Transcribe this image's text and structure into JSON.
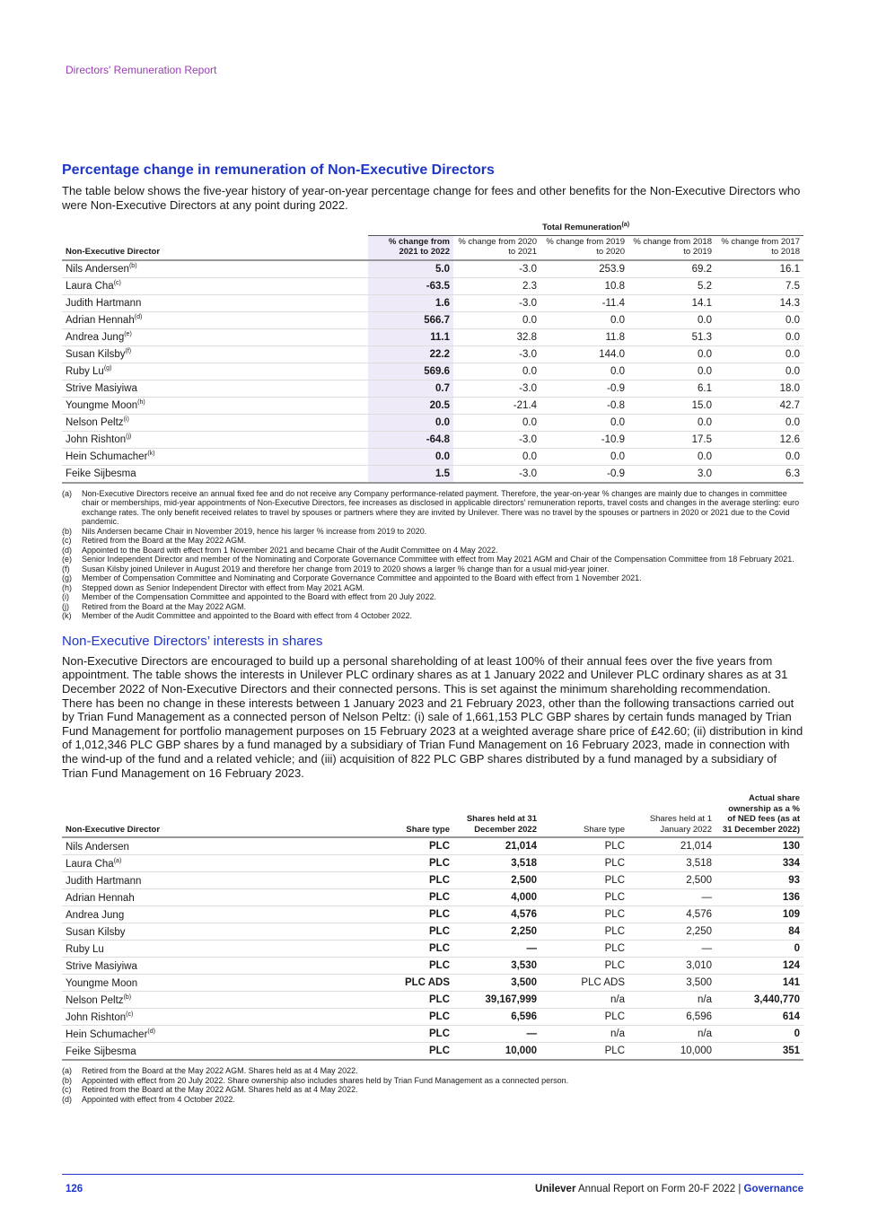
{
  "header": {
    "section": "Directors' Remuneration Report"
  },
  "section1": {
    "title": "Percentage change in remuneration of Non-Executive Directors",
    "intro": "The table below shows the five-year history of year-on-year percentage change for fees and other benefits for the Non-Executive Directors who were Non-Executive Directors at any point during 2022.",
    "group_header": "Total Remuneration",
    "group_note": "(a)",
    "columns": [
      "Non-Executive Director",
      "% change from 2021 to 2022",
      "% change from 2020 to 2021",
      "% change from 2019 to 2020",
      "% change from 2018 to 2019",
      "% change from 2017 to 2018"
    ],
    "rows": [
      {
        "name": "Nils Andersen",
        "note": "(b)",
        "v": [
          "5.0",
          "-3.0",
          "253.9",
          "69.2",
          "16.1"
        ]
      },
      {
        "name": "Laura Cha",
        "note": "(c)",
        "v": [
          "-63.5",
          "2.3",
          "10.8",
          "5.2",
          "7.5"
        ]
      },
      {
        "name": "Judith Hartmann",
        "note": "",
        "v": [
          "1.6",
          "-3.0",
          "-11.4",
          "14.1",
          "14.3"
        ]
      },
      {
        "name": "Adrian Hennah",
        "note": "(d)",
        "v": [
          "566.7",
          "0.0",
          "0.0",
          "0.0",
          "0.0"
        ]
      },
      {
        "name": "Andrea Jung",
        "note": "(e)",
        "v": [
          "11.1",
          "32.8",
          "11.8",
          "51.3",
          "0.0"
        ]
      },
      {
        "name": "Susan Kilsby",
        "note": "(f)",
        "v": [
          "22.2",
          "-3.0",
          "144.0",
          "0.0",
          "0.0"
        ]
      },
      {
        "name": "Ruby Lu",
        "note": "(g)",
        "v": [
          "569.6",
          "0.0",
          "0.0",
          "0.0",
          "0.0"
        ]
      },
      {
        "name": "Strive Masiyiwa",
        "note": "",
        "v": [
          "0.7",
          "-3.0",
          "-0.9",
          "6.1",
          "18.0"
        ]
      },
      {
        "name": "Youngme Moon",
        "note": "(h)",
        "v": [
          "20.5",
          "-21.4",
          "-0.8",
          "15.0",
          "42.7"
        ]
      },
      {
        "name": "Nelson Peltz",
        "note": "(i)",
        "v": [
          "0.0",
          "0.0",
          "0.0",
          "0.0",
          "0.0"
        ]
      },
      {
        "name": "John Rishton",
        "note": "(j)",
        "v": [
          "-64.8",
          "-3.0",
          "-10.9",
          "17.5",
          "12.6"
        ]
      },
      {
        "name": "Hein Schumacher",
        "note": "(k)",
        "v": [
          "0.0",
          "0.0",
          "0.0",
          "0.0",
          "0.0"
        ]
      },
      {
        "name": "Feike Sijbesma",
        "note": "",
        "v": [
          "1.5",
          "-3.0",
          "-0.9",
          "3.0",
          "6.3"
        ]
      }
    ],
    "notes": [
      {
        "k": "(a)",
        "t": "Non-Executive Directors receive an annual fixed fee and do not receive any Company performance-related payment. Therefore, the year-on-year % changes are mainly due to changes in committee chair or memberships, mid-year appointments of Non-Executive Directors, fee increases as disclosed in applicable directors' remuneration reports, travel costs and changes in the average sterling: euro exchange rates. The only benefit received relates to travel by spouses or partners where they are invited by Unilever. There was no travel by the spouses or partners in 2020 or 2021 due to the Covid pandemic."
      },
      {
        "k": "(b)",
        "t": "Nils Andersen became Chair in November 2019, hence his larger % increase from 2019 to 2020."
      },
      {
        "k": "(c)",
        "t": "Retired from the Board at the May 2022 AGM."
      },
      {
        "k": "(d)",
        "t": "Appointed to the Board with effect from 1 November 2021 and became Chair of the Audit Committee on 4 May 2022."
      },
      {
        "k": "(e)",
        "t": "Senior Independent Director and member of the Nominating and Corporate Governance Committee with effect from May 2021 AGM and Chair of the Compensation Committee from 18 February 2021."
      },
      {
        "k": "(f)",
        "t": "Susan Kilsby joined Unilever in August 2019 and therefore her change from 2019 to 2020 shows a larger % change than for a usual mid-year joiner."
      },
      {
        "k": "(g)",
        "t": "Member of Compensation Committee and Nominating and Corporate Governance Committee and appointed to the Board with effect from 1 November 2021."
      },
      {
        "k": "(h)",
        "t": "Stepped down as Senior Independent Director with effect from May 2021 AGM."
      },
      {
        "k": "(i)",
        "t": "Member of the Compensation Committee and appointed to the Board with effect from 20 July 2022."
      },
      {
        "k": "(j)",
        "t": "Retired from the Board at the May 2022 AGM."
      },
      {
        "k": "(k)",
        "t": "Member of the Audit Committee and appointed to the Board with effect from 4 October 2022."
      }
    ]
  },
  "section2": {
    "title": "Non-Executive Directors’ interests in shares",
    "intro": "Non-Executive Directors are encouraged to build up a personal shareholding of at least 100% of their annual fees over the five years from appointment. The table shows the interests in Unilever PLC ordinary shares as at 1 January 2022 and Unilever PLC ordinary shares as at 31 December 2022 of Non-Executive Directors and their connected persons. This is set against the minimum shareholding recommendation. There has been no change in these interests between 1 January 2023 and 21 February 2023, other than the following transactions carried out by Trian Fund Management as a connected person of Nelson Peltz: (i) sale of 1,661,153 PLC GBP shares by certain funds managed by Trian Fund Management for portfolio management purposes on 15 February 2023 at a weighted average share price of £42.60; (ii) distribution in kind of 1,012,346 PLC GBP shares by a fund managed by a subsidiary of Trian Fund Management on 16 February 2023, made in connection with the wind-up of the fund and a related vehicle; and (iii) acquisition of 822 PLC GBP shares distributed by a fund managed by a subsidiary of Trian Fund Management on 16 February 2023.",
    "columns": [
      "Non-Executive Director",
      "Share type",
      "Shares held at 31 December 2022",
      "Share type",
      "Shares held at 1 January 2022",
      "Actual share ownership as a % of NED fees (as at 31 December 2022)"
    ],
    "rows": [
      {
        "name": "Nils Andersen",
        "note": "",
        "v": [
          "PLC",
          "21,014",
          "PLC",
          "21,014",
          "130"
        ]
      },
      {
        "name": "Laura Cha",
        "note": "(a)",
        "v": [
          "PLC",
          "3,518",
          "PLC",
          "3,518",
          "334"
        ]
      },
      {
        "name": "Judith Hartmann",
        "note": "",
        "v": [
          "PLC",
          "2,500",
          "PLC",
          "2,500",
          "93"
        ]
      },
      {
        "name": "Adrian Hennah",
        "note": "",
        "v": [
          "PLC",
          "4,000",
          "PLC",
          "—",
          "136"
        ]
      },
      {
        "name": "Andrea Jung",
        "note": "",
        "v": [
          "PLC",
          "4,576",
          "PLC",
          "4,576",
          "109"
        ]
      },
      {
        "name": "Susan Kilsby",
        "note": "",
        "v": [
          "PLC",
          "2,250",
          "PLC",
          "2,250",
          "84"
        ]
      },
      {
        "name": "Ruby Lu",
        "note": "",
        "v": [
          "PLC",
          "—",
          "PLC",
          "—",
          "0"
        ]
      },
      {
        "name": "Strive Masiyiwa",
        "note": "",
        "v": [
          "PLC",
          "3,530",
          "PLC",
          "3,010",
          "124"
        ]
      },
      {
        "name": "Youngme Moon",
        "note": "",
        "v": [
          "PLC ADS",
          "3,500",
          "PLC ADS",
          "3,500",
          "141"
        ]
      },
      {
        "name": "Nelson Peltz",
        "note": "(b)",
        "v": [
          "PLC",
          "39,167,999",
          "n/a",
          "n/a",
          "3,440,770"
        ]
      },
      {
        "name": "John Rishton",
        "note": "(c)",
        "v": [
          "PLC",
          "6,596",
          "PLC",
          "6,596",
          "614"
        ]
      },
      {
        "name": "Hein Schumacher",
        "note": "(d)",
        "v": [
          "PLC",
          "—",
          "n/a",
          "n/a",
          "0"
        ]
      },
      {
        "name": "Feike Sijbesma",
        "note": "",
        "v": [
          "PLC",
          "10,000",
          "PLC",
          "10,000",
          "351"
        ]
      }
    ],
    "notes": [
      {
        "k": "(a)",
        "t": "Retired from the Board at the May 2022 AGM. Shares held as at 4 May 2022."
      },
      {
        "k": "(b)",
        "t": "Appointed with effect from 20 July 2022. Share ownership also includes shares held by Trian Fund Management as a connected person."
      },
      {
        "k": "(c)",
        "t": "Retired from the Board at the May 2022 AGM. Shares held as at 4 May 2022."
      },
      {
        "k": "(d)",
        "t": "Appointed with effect from 4 October 2022."
      }
    ]
  },
  "footer": {
    "page": "126",
    "brand": "Unilever",
    "report": " Annual Report on Form 20-F 2022 | ",
    "section": "Governance"
  }
}
